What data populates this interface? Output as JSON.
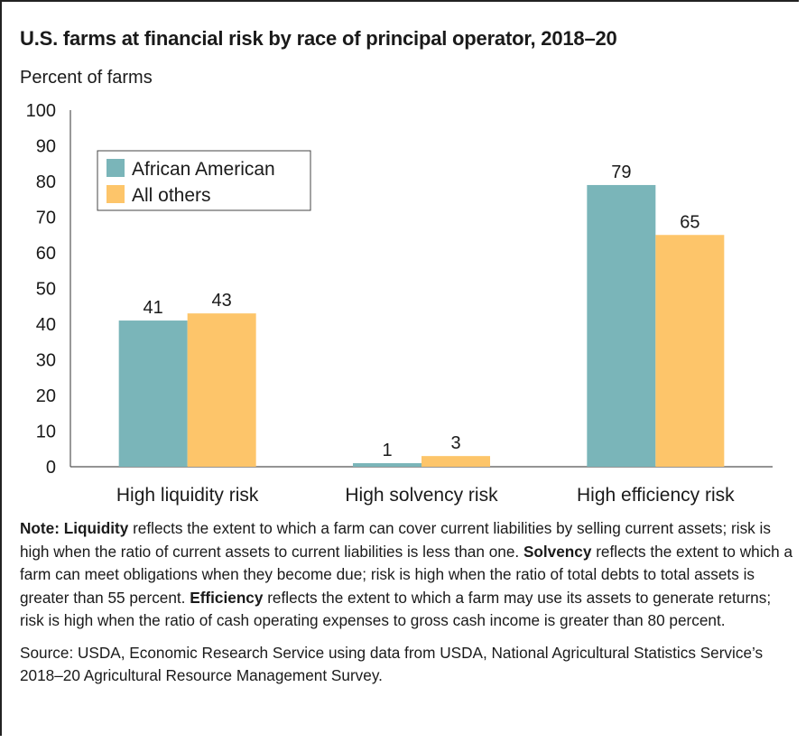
{
  "title": "U.S. farms at financial risk by race of principal operator, 2018–20",
  "notes": {
    "note_prefix": "Note: ",
    "liquidity_term": "Liquidity",
    "liquidity_text": " reflects the extent to which a farm can cover current liabilities by selling current assets; risk is high when the ratio of current assets to current liabilities is less than one. ",
    "solvency_term": "Solvency",
    "solvency_text": " reflects the extent to which a farm can meet obligations when they become due; risk is high when the ratio of total debts to total assets is greater than 55 percent. ",
    "efficiency_term": "Efficiency",
    "efficiency_text": " reflects the extent to which a farm may use its assets to generate returns; risk is high when the ratio of cash operating expenses to gross cash income is greater than 80 percent.",
    "source": "Source: USDA, Economic Research Service using data from USDA, National Agricultural Statistics Service’s 2018–20 Agricultural Resource Management Survey."
  },
  "chart_data": {
    "type": "bar",
    "title": "U.S. farms at financial risk by race of principal operator, 2018–20",
    "ylabel": "Percent of farms",
    "xlabel": "",
    "ylim": [
      0,
      100
    ],
    "yticks": [
      0,
      10,
      20,
      30,
      40,
      50,
      60,
      70,
      80,
      90,
      100
    ],
    "categories": [
      "High liquidity risk",
      "High solvency risk",
      "High efficiency risk"
    ],
    "series": [
      {
        "name": "African American",
        "values": [
          41,
          1,
          79
        ],
        "color": "#7ab5b9"
      },
      {
        "name": "All others",
        "values": [
          43,
          3,
          65
        ],
        "color": "#fdc56a"
      }
    ],
    "data_labels": true,
    "grid": false,
    "legend": "top-left"
  }
}
